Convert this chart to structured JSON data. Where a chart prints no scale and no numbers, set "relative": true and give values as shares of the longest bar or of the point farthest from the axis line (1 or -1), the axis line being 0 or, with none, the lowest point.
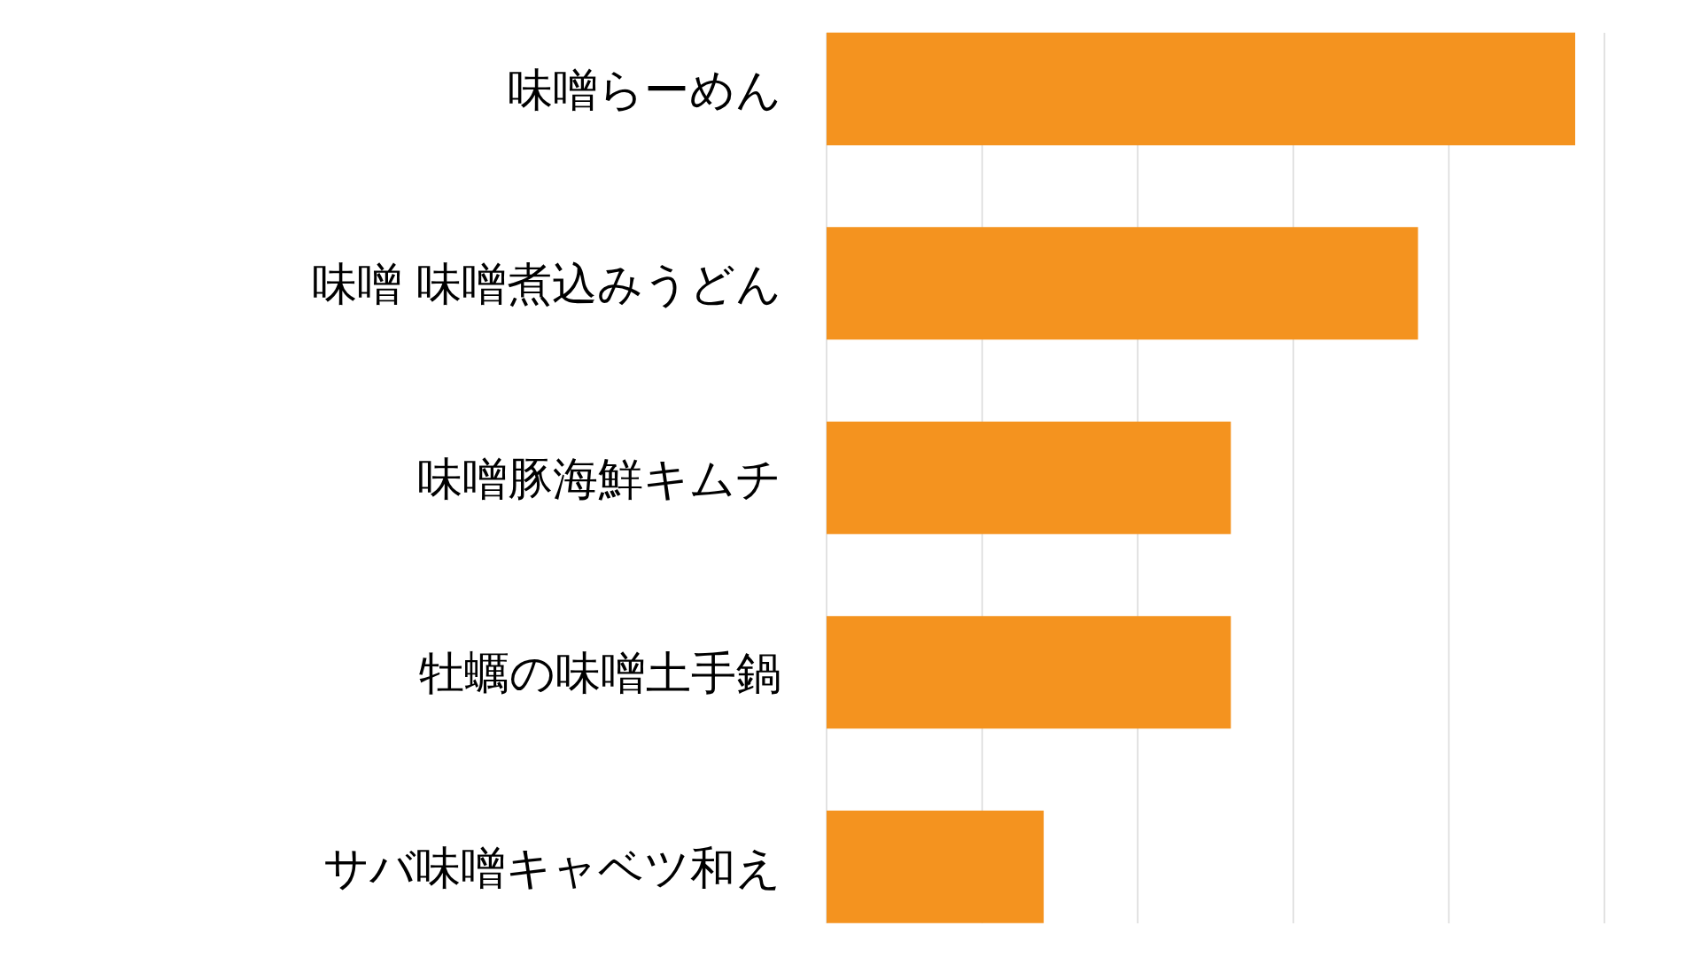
{
  "chart_data": {
    "type": "bar",
    "orientation": "horizontal",
    "relative": true,
    "categories": [
      "味噌らーめん",
      "味噌 味噌煮込みうどん",
      "味噌豚海鮮キムチ",
      "牡蠣の味噌土手鍋",
      "サバ味噌キャベツ和え"
    ],
    "values": [
      1,
      0.79,
      0.54,
      0.54,
      0.29
    ],
    "color": "#f4931f",
    "grid": "x"
  }
}
